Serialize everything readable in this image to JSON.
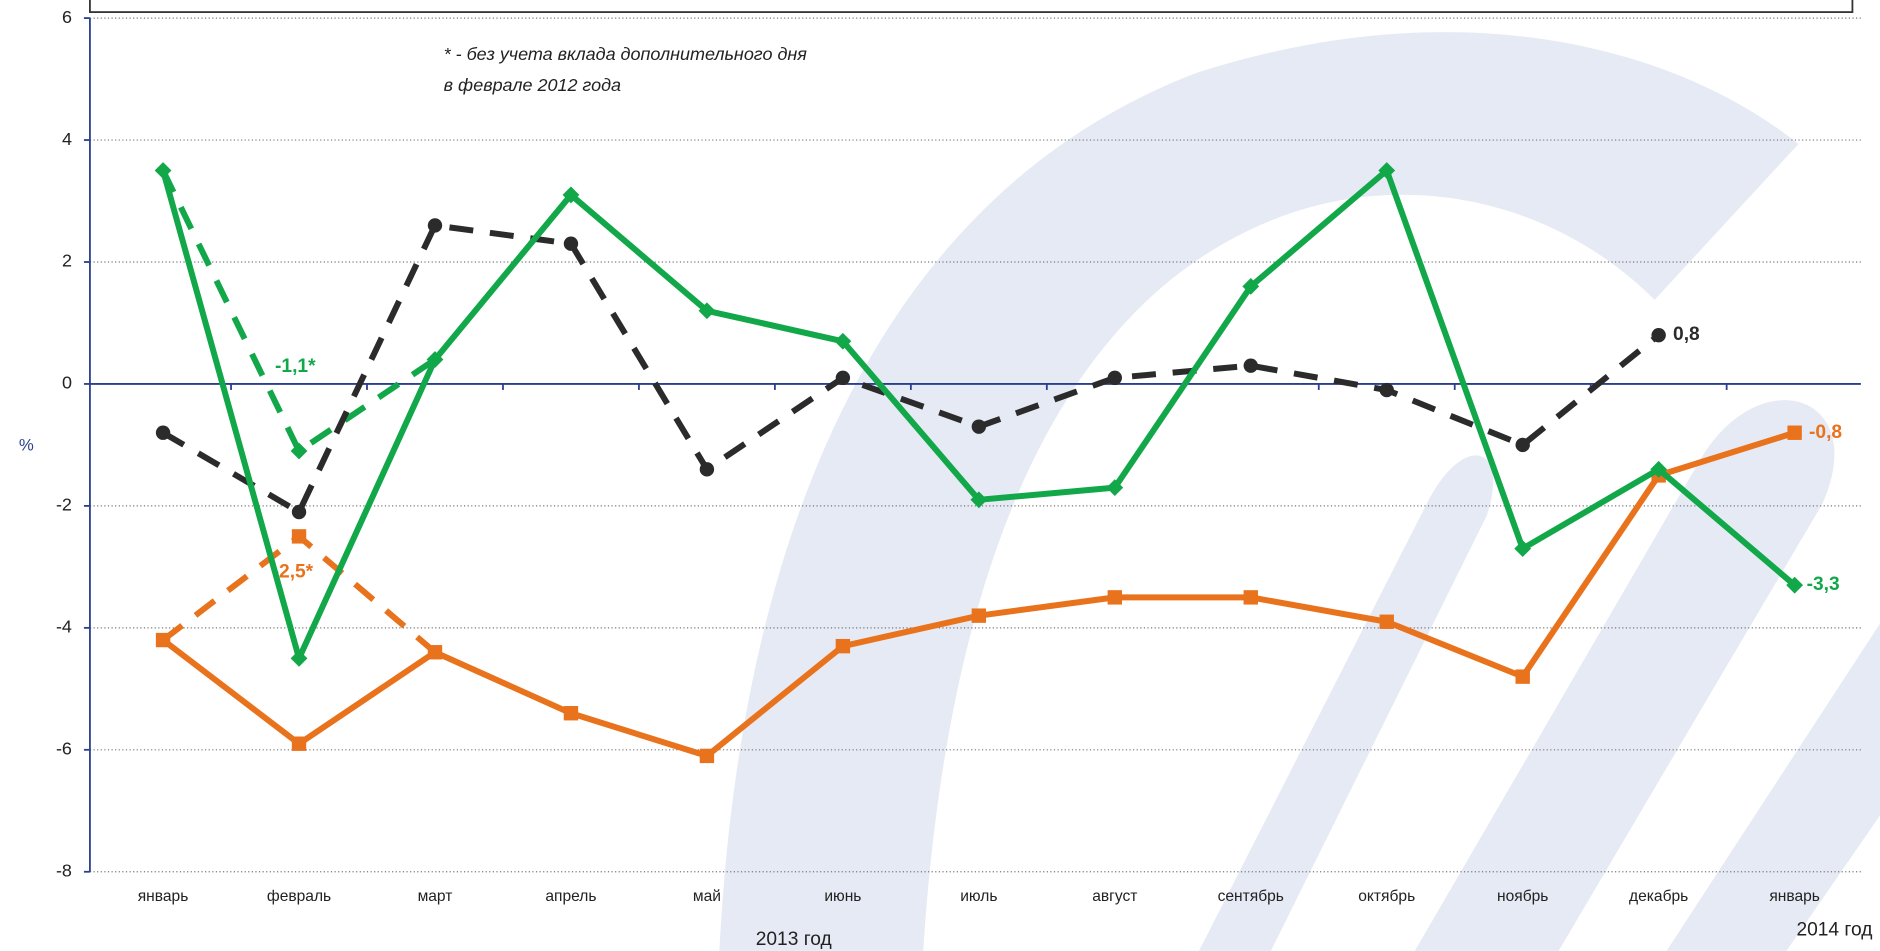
{
  "chart_data": {
    "type": "line",
    "annotation": [
      "* - без учета вклада дополнительного дня",
      "в феврале 2012 года"
    ],
    "ylabel": "%",
    "categories": [
      "январь",
      "февраль",
      "март",
      "апрель",
      "май",
      "июнь",
      "июль",
      "август",
      "сентябрь",
      "октябрь",
      "ноябрь",
      "декабрь",
      "январь"
    ],
    "x_groups": [
      "2013 год",
      "2014 год"
    ],
    "ylim": [
      -8,
      6
    ],
    "yticks": [
      -8,
      -6,
      -4,
      -2,
      0,
      2,
      4,
      6
    ],
    "grid": true,
    "series": [
      {
        "color": "#12a84a",
        "style": "solid",
        "marker": "diamond",
        "values": [
          3.5,
          -4.5,
          0.4,
          3.1,
          1.2,
          0.7,
          -1.9,
          -1.7,
          1.6,
          3.5,
          -2.7,
          -1.4,
          -3.3
        ],
        "value_labels": [
          null,
          null,
          null,
          null,
          null,
          null,
          null,
          null,
          null,
          null,
          null,
          null,
          "-3,3"
        ]
      },
      {
        "color": "#2b2b2b",
        "style": "dashed",
        "marker": "circle",
        "values": [
          -0.8,
          -2.1,
          2.6,
          2.3,
          -1.4,
          0.1,
          -0.7,
          0.1,
          0.3,
          -0.1,
          -1.0,
          0.8,
          null
        ],
        "value_labels": [
          null,
          null,
          null,
          null,
          null,
          null,
          null,
          null,
          null,
          null,
          null,
          "0,8",
          null
        ]
      },
      {
        "color": "#e8731c",
        "style": "solid",
        "marker": "square",
        "values": [
          -4.2,
          -5.9,
          -4.4,
          -5.4,
          -6.1,
          -4.3,
          -3.8,
          -3.5,
          -3.5,
          -3.9,
          -4.8,
          -1.5,
          -0.8
        ],
        "value_labels": [
          null,
          null,
          null,
          null,
          null,
          null,
          null,
          null,
          null,
          null,
          null,
          null,
          "-0,8"
        ]
      },
      {
        "color": "#12a84a",
        "style": "dashed",
        "marker": "diamond",
        "values": [
          3.5,
          -1.1,
          0.4,
          null,
          null,
          null,
          null,
          null,
          null,
          null,
          null,
          null,
          null
        ],
        "value_labels": [
          null,
          "-1,1*",
          null,
          null,
          null,
          null,
          null,
          null,
          null,
          null,
          null,
          null,
          null
        ]
      },
      {
        "color": "#e8731c",
        "style": "dashed",
        "marker": "square",
        "values": [
          -4.2,
          -2.5,
          -4.4,
          null,
          null,
          null,
          null,
          null,
          null,
          null,
          null,
          null,
          null
        ],
        "value_labels": [
          null,
          "-2,5*",
          null,
          null,
          null,
          null,
          null,
          null,
          null,
          null,
          null,
          null,
          null
        ]
      }
    ]
  }
}
